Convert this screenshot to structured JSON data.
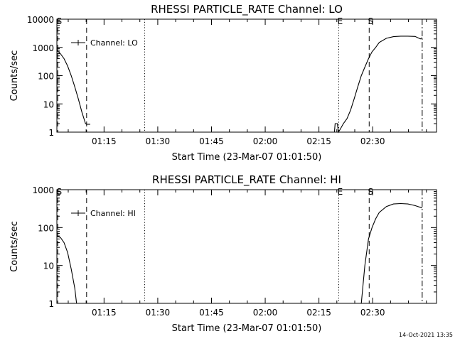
{
  "footer": {
    "timestamp": "14-Oct-2021 13:35"
  },
  "chart_data": [
    {
      "type": "line",
      "title": "RHESSI PARTICLE_RATE Channel: LO",
      "xlabel": "Start Time (23-Mar-07 01:01:50)",
      "ylabel": "Counts/sec",
      "yscale": "log",
      "xlim_minutes": [
        0,
        106
      ],
      "ylim": [
        1,
        10000
      ],
      "y_ticks": [
        1,
        10,
        100,
        1000,
        10000
      ],
      "y_tick_labels": [
        "1",
        "10",
        "100",
        "1000",
        "10000"
      ],
      "x_tick_minutes": [
        13.17,
        28.17,
        43.17,
        58.17,
        73.17,
        88.17
      ],
      "x_tick_labels": [
        "01:15",
        "01:30",
        "01:45",
        "02:00",
        "02:15",
        "02:30"
      ],
      "legend": {
        "label": "Channel: LO",
        "position": "top-left"
      },
      "series": [
        {
          "name": "Channel: LO",
          "segments": [
            [
              [
                0,
                800
              ],
              [
                1,
                600
              ],
              [
                2,
                400
              ],
              [
                3,
                220
              ],
              [
                4,
                100
              ],
              [
                5,
                40
              ],
              [
                6,
                15
              ],
              [
                7,
                5
              ],
              [
                8,
                2
              ],
              [
                8.3,
                1.9
              ],
              [
                9.3,
                1.9
              ]
            ],
            [
              [
                77.5,
                1
              ],
              [
                77.7,
                2
              ],
              [
                78.3,
                2
              ],
              [
                78.6,
                1
              ],
              [
                79,
                1.2
              ],
              [
                80,
                2
              ],
              [
                81,
                3
              ],
              [
                82,
                6
              ],
              [
                83,
                15
              ],
              [
                84,
                40
              ],
              [
                85,
                100
              ],
              [
                86,
                200
              ],
              [
                87,
                400
              ],
              [
                88,
                700
              ],
              [
                89,
                1000
              ],
              [
                90,
                1500
              ],
              [
                92,
                2100
              ],
              [
                94,
                2400
              ],
              [
                96,
                2500
              ],
              [
                98,
                2500
              ],
              [
                100,
                2450
              ],
              [
                101.5,
                2000
              ],
              [
                102,
                2200
              ]
            ]
          ]
        }
      ],
      "markers": [
        {
          "minute": 0.25,
          "style": "dashed",
          "label": "S"
        },
        {
          "minute": 8.3,
          "style": "dashed",
          "label": ""
        },
        {
          "minute": 24.5,
          "style": "dotted",
          "label": ""
        },
        {
          "minute": 78.7,
          "style": "dotted",
          "label": "E"
        },
        {
          "minute": 87.2,
          "style": "dashed",
          "label": "S"
        },
        {
          "minute": 102,
          "style": "dashdot",
          "label": ""
        }
      ]
    },
    {
      "type": "line",
      "title": "RHESSI PARTICLE_RATE Channel: HI",
      "xlabel": "Start Time (23-Mar-07 01:01:50)",
      "ylabel": "Counts/sec",
      "yscale": "log",
      "xlim_minutes": [
        0,
        106
      ],
      "ylim": [
        1,
        1000
      ],
      "y_ticks": [
        1,
        10,
        100,
        1000
      ],
      "y_tick_labels": [
        "1",
        "10",
        "100",
        "1000"
      ],
      "x_tick_minutes": [
        13.17,
        28.17,
        43.17,
        58.17,
        73.17,
        88.17
      ],
      "x_tick_labels": [
        "01:15",
        "01:30",
        "01:45",
        "02:00",
        "02:15",
        "02:30"
      ],
      "legend": {
        "label": "Channel: HI",
        "position": "top-left"
      },
      "series": [
        {
          "name": "Channel: HI",
          "segments": [
            [
              [
                0,
                60
              ],
              [
                1,
                55
              ],
              [
                2,
                40
              ],
              [
                3,
                22
              ],
              [
                4,
                8
              ],
              [
                5,
                2.5
              ],
              [
                5.5,
                1
              ]
            ],
            [
              [
                85,
                1
              ],
              [
                86,
                10
              ],
              [
                87,
                50
              ],
              [
                88,
                100
              ],
              [
                89,
                170
              ],
              [
                90,
                250
              ],
              [
                92,
                360
              ],
              [
                94,
                420
              ],
              [
                96,
                430
              ],
              [
                98,
                420
              ],
              [
                100,
                380
              ],
              [
                102,
                330
              ]
            ]
          ]
        }
      ],
      "markers": [
        {
          "minute": 0.25,
          "style": "dashed",
          "label": "S"
        },
        {
          "minute": 8.3,
          "style": "dashed",
          "label": ""
        },
        {
          "minute": 24.5,
          "style": "dotted",
          "label": ""
        },
        {
          "minute": 78.7,
          "style": "dotted",
          "label": "E"
        },
        {
          "minute": 87.2,
          "style": "dashed",
          "label": "S"
        },
        {
          "minute": 102,
          "style": "dashdot",
          "label": ""
        }
      ]
    }
  ]
}
